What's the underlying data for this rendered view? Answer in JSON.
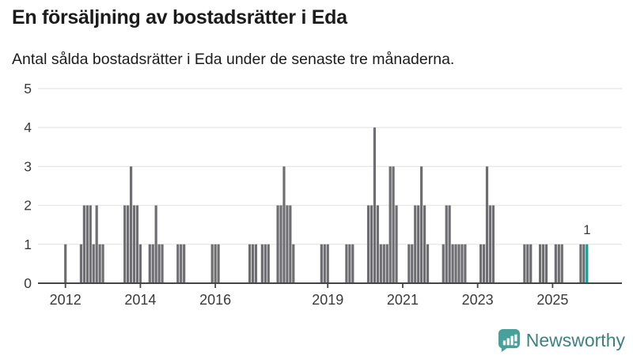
{
  "header": {
    "title": "En försäljning av bostadsrätter i Eda",
    "subtitle": "Antal sålda bostadsrätter i Eda under de senaste tre månaderna."
  },
  "footer": {
    "brand": "Newsworthy"
  },
  "colors": {
    "bar": "#6e6e72",
    "accent": "#0aa29a",
    "grid": "#e8e8e8",
    "axis": "#454545",
    "text": "#3a3a3a",
    "logo_icon": "#48a09a",
    "logo_text": "#3c827d"
  },
  "chart_data": {
    "type": "bar",
    "title": "En försäljning av bostadsrätter i Eda",
    "subtitle": "Antal sålda bostadsrätter i Eda under de senaste tre månaderna.",
    "x_axis": {
      "tick_labels": [
        "2012",
        "2014",
        "2016",
        "2019",
        "2021",
        "2023",
        "2025"
      ],
      "tick_dates": [
        "2012-01",
        "2014-01",
        "2016-01",
        "2019-01",
        "2021-01",
        "2023-01",
        "2025-01"
      ]
    },
    "y_axis": {
      "tick_labels": [
        "0",
        "1",
        "2",
        "3",
        "4",
        "5"
      ],
      "range": [
        0,
        5
      ],
      "grid": true
    },
    "series_note": "monthly values; months not listed are 0",
    "series": [
      {
        "date": "2012-01",
        "value": 1
      },
      {
        "date": "2012-06",
        "value": 1
      },
      {
        "date": "2012-07",
        "value": 2
      },
      {
        "date": "2012-08",
        "value": 2
      },
      {
        "date": "2012-09",
        "value": 2
      },
      {
        "date": "2012-10",
        "value": 1
      },
      {
        "date": "2012-11",
        "value": 2
      },
      {
        "date": "2012-12",
        "value": 1
      },
      {
        "date": "2013-01",
        "value": 1
      },
      {
        "date": "2013-08",
        "value": 2
      },
      {
        "date": "2013-09",
        "value": 2
      },
      {
        "date": "2013-10",
        "value": 3
      },
      {
        "date": "2013-11",
        "value": 2
      },
      {
        "date": "2013-12",
        "value": 2
      },
      {
        "date": "2014-01",
        "value": 1
      },
      {
        "date": "2014-04",
        "value": 1
      },
      {
        "date": "2014-05",
        "value": 1
      },
      {
        "date": "2014-06",
        "value": 2
      },
      {
        "date": "2014-07",
        "value": 1
      },
      {
        "date": "2014-08",
        "value": 1
      },
      {
        "date": "2015-01",
        "value": 1
      },
      {
        "date": "2015-02",
        "value": 1
      },
      {
        "date": "2015-03",
        "value": 1
      },
      {
        "date": "2015-12",
        "value": 1
      },
      {
        "date": "2016-01",
        "value": 1
      },
      {
        "date": "2016-02",
        "value": 1
      },
      {
        "date": "2016-12",
        "value": 1
      },
      {
        "date": "2017-01",
        "value": 1
      },
      {
        "date": "2017-02",
        "value": 1
      },
      {
        "date": "2017-04",
        "value": 1
      },
      {
        "date": "2017-05",
        "value": 1
      },
      {
        "date": "2017-06",
        "value": 1
      },
      {
        "date": "2017-09",
        "value": 2
      },
      {
        "date": "2017-10",
        "value": 2
      },
      {
        "date": "2017-11",
        "value": 3
      },
      {
        "date": "2017-12",
        "value": 2
      },
      {
        "date": "2018-01",
        "value": 2
      },
      {
        "date": "2018-02",
        "value": 1
      },
      {
        "date": "2018-11",
        "value": 1
      },
      {
        "date": "2018-12",
        "value": 1
      },
      {
        "date": "2019-01",
        "value": 1
      },
      {
        "date": "2019-07",
        "value": 1
      },
      {
        "date": "2019-08",
        "value": 1
      },
      {
        "date": "2019-09",
        "value": 1
      },
      {
        "date": "2020-02",
        "value": 2
      },
      {
        "date": "2020-03",
        "value": 2
      },
      {
        "date": "2020-04",
        "value": 4
      },
      {
        "date": "2020-05",
        "value": 2
      },
      {
        "date": "2020-06",
        "value": 1
      },
      {
        "date": "2020-07",
        "value": 1
      },
      {
        "date": "2020-08",
        "value": 1
      },
      {
        "date": "2020-09",
        "value": 3
      },
      {
        "date": "2020-10",
        "value": 3
      },
      {
        "date": "2020-11",
        "value": 2
      },
      {
        "date": "2021-03",
        "value": 1
      },
      {
        "date": "2021-04",
        "value": 1
      },
      {
        "date": "2021-05",
        "value": 2
      },
      {
        "date": "2021-06",
        "value": 2
      },
      {
        "date": "2021-07",
        "value": 3
      },
      {
        "date": "2021-08",
        "value": 2
      },
      {
        "date": "2021-09",
        "value": 1
      },
      {
        "date": "2022-02",
        "value": 1
      },
      {
        "date": "2022-03",
        "value": 2
      },
      {
        "date": "2022-04",
        "value": 2
      },
      {
        "date": "2022-05",
        "value": 1
      },
      {
        "date": "2022-06",
        "value": 1
      },
      {
        "date": "2022-07",
        "value": 1
      },
      {
        "date": "2022-08",
        "value": 1
      },
      {
        "date": "2022-09",
        "value": 1
      },
      {
        "date": "2023-02",
        "value": 1
      },
      {
        "date": "2023-03",
        "value": 1
      },
      {
        "date": "2023-04",
        "value": 3
      },
      {
        "date": "2023-05",
        "value": 2
      },
      {
        "date": "2023-06",
        "value": 2
      },
      {
        "date": "2024-04",
        "value": 1
      },
      {
        "date": "2024-05",
        "value": 1
      },
      {
        "date": "2024-06",
        "value": 1
      },
      {
        "date": "2024-09",
        "value": 1
      },
      {
        "date": "2024-10",
        "value": 1
      },
      {
        "date": "2024-11",
        "value": 1
      },
      {
        "date": "2025-02",
        "value": 1
      },
      {
        "date": "2025-03",
        "value": 1
      },
      {
        "date": "2025-04",
        "value": 1
      },
      {
        "date": "2025-10",
        "value": 1
      },
      {
        "date": "2025-11",
        "value": 1
      },
      {
        "date": "2025-12",
        "value": 1
      }
    ],
    "highlight": {
      "date": "2025-12",
      "value": 1,
      "label": "1"
    }
  }
}
